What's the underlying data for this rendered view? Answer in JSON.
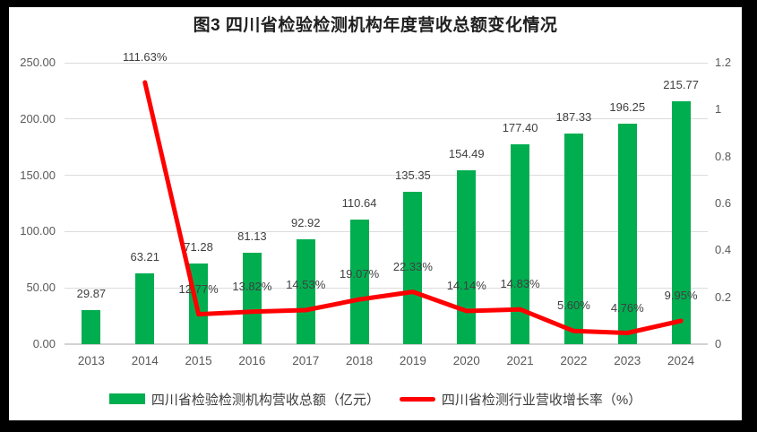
{
  "frame": {
    "background": "#000000",
    "canvas_background": "#ffffff"
  },
  "chart_data": {
    "type": "bar+line combo",
    "title": "图3  四川省检验检测机构年度营收总额变化情况",
    "categories": [
      "2013",
      "2014",
      "2015",
      "2016",
      "2017",
      "2018",
      "2019",
      "2020",
      "2021",
      "2022",
      "2023",
      "2024"
    ],
    "series": [
      {
        "name": "四川省检验检测机构营收总额（亿元）",
        "type": "bar",
        "axis": "left",
        "color": "#00AE50",
        "values": [
          29.87,
          63.21,
          71.28,
          81.13,
          92.92,
          110.64,
          135.35,
          154.49,
          177.4,
          187.33,
          196.25,
          215.77
        ],
        "labels": [
          "29.87",
          "63.21",
          "71.28",
          "81.13",
          "92.92",
          "110.64",
          "135.35",
          "154.49",
          "177.40",
          "187.33",
          "196.25",
          "215.77"
        ]
      },
      {
        "name": "四川省检测行业营收增长率（%）",
        "type": "line",
        "axis": "right",
        "color": "#FF0000",
        "values": [
          null,
          1.1163,
          0.1277,
          0.1382,
          0.1453,
          0.1907,
          0.2233,
          0.1414,
          0.1483,
          0.056,
          0.0476,
          0.0995
        ],
        "labels": [
          "",
          "111.63%",
          "12.77%",
          "13.82%",
          "14.53%",
          "19.07%",
          "22.33%",
          "14.14%",
          "14.83%",
          "5.60%",
          "4.76%",
          "9.95%"
        ]
      }
    ],
    "left_axis": {
      "min": 0,
      "max": 250,
      "ticks": [
        "0.00",
        "50.00",
        "100.00",
        "150.00",
        "200.00",
        "250.00"
      ]
    },
    "right_axis": {
      "min": 0,
      "max": 1.2,
      "ticks": [
        "0",
        "0.2",
        "0.4",
        "0.6",
        "0.8",
        "1",
        "1.2"
      ]
    },
    "grid": true,
    "legend_position": "bottom",
    "colors": {
      "gridline": "#dcdcdc",
      "axis_text": "#595959",
      "data_label": "#404040",
      "title_text": "#1f1f1f"
    }
  }
}
